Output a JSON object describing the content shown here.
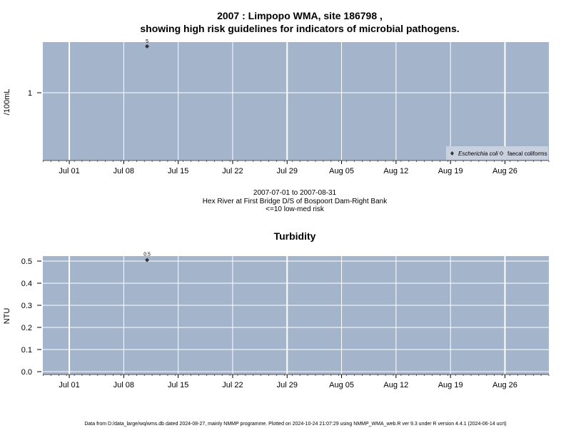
{
  "chart_data": [
    {
      "type": "scatter",
      "title_line1": "2007 : Limpopo WMA, site 186798 ,",
      "title_line2": "showing high risk guidelines for indicators of microbial pathogens.",
      "ylabel": "/100mL",
      "yscale": "log",
      "x_ticks": [
        "Jul 01",
        "Jul 08",
        "Jul 15",
        "Jul 22",
        "Jul 29",
        "Aug 05",
        "Aug 12",
        "Aug 19",
        "Aug 26"
      ],
      "y_ticks": [
        "1"
      ],
      "series": [
        {
          "name": "Escherichia coli",
          "marker": "filled-diamond",
          "points": [
            {
              "x": "2007-07-11",
              "y": 5,
              "label": "5"
            }
          ]
        },
        {
          "name": "faecal coliforms",
          "marker": "open-diamond",
          "points": []
        }
      ],
      "subtitle_lines": [
        "2007-07-01 to 2007-08-31",
        "Hex River at First Bridge D/S of Bospoort Dam-Right Bank",
        "<=10 low-med risk"
      ],
      "legend_position": "bottom-right",
      "grid": true
    },
    {
      "type": "scatter",
      "title": "Turbidity",
      "ylabel": "NTU",
      "x_ticks": [
        "Jul 01",
        "Jul 08",
        "Jul 15",
        "Jul 22",
        "Jul 29",
        "Aug 05",
        "Aug 12",
        "Aug 19",
        "Aug 26"
      ],
      "y_ticks": [
        "0.0",
        "0.1",
        "0.2",
        "0.3",
        "0.4",
        "0.5"
      ],
      "ylim": [
        0,
        0.5
      ],
      "series": [
        {
          "name": "Turbidity",
          "marker": "filled-diamond",
          "points": [
            {
              "x": "2007-07-11",
              "y": 0.5,
              "label": "0.5"
            }
          ]
        }
      ],
      "grid": true
    }
  ],
  "footer": "Data from D:/data_large/wq/wms.db dated 2024-08-27, mainly NMMP programme. Plotted on 2024-10-24 21:07:29 using NMMP_WMA_web.R ver 9.3 under R version 4.4.1 (2024-06-14 ucrt)",
  "colors": {
    "panel_bg": "#a3b4cb",
    "grid": "#ffffff",
    "marker": "#333333"
  }
}
